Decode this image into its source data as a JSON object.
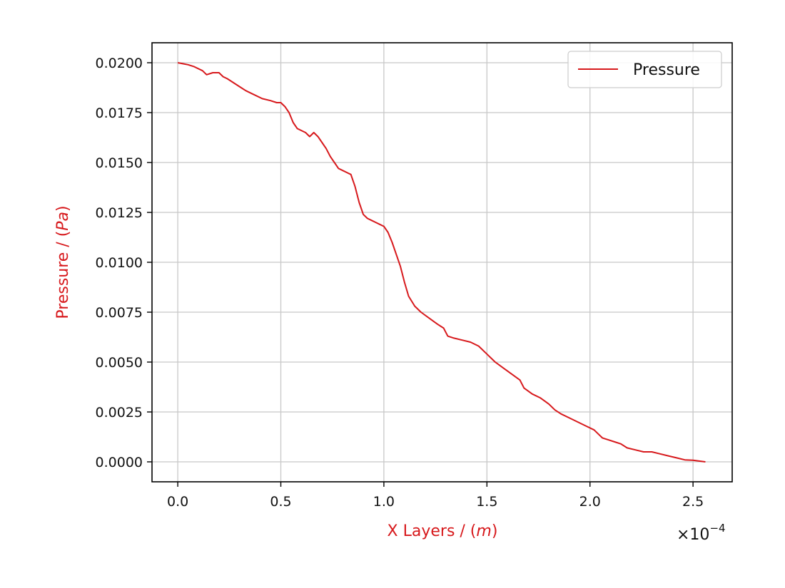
{
  "chart_data": {
    "type": "line",
    "xlabel": {
      "prefix": "X Layers / (",
      "unit": "m",
      "suffix": ")"
    },
    "ylabel": {
      "prefix": "Pressure / (",
      "unit": "Pa",
      "suffix": ")"
    },
    "x_offset_label": {
      "base": "×10",
      "exponent": "−4"
    },
    "x_scale": 0.0001,
    "xlim": [
      -0.125,
      2.69
    ],
    "ylim": [
      -0.001,
      0.021
    ],
    "xticks": [
      0.0,
      0.5,
      1.0,
      1.5,
      2.0,
      2.5
    ],
    "xtick_labels": [
      "0.0",
      "0.5",
      "1.0",
      "1.5",
      "2.0",
      "2.5"
    ],
    "yticks": [
      0.0,
      0.0025,
      0.005,
      0.0075,
      0.01,
      0.0125,
      0.015,
      0.0175,
      0.02
    ],
    "ytick_labels": [
      "0.0000",
      "0.0025",
      "0.0050",
      "0.0075",
      "0.0100",
      "0.0125",
      "0.0150",
      "0.0175",
      "0.0200"
    ],
    "grid": true,
    "legend_position": "top-right",
    "label_color": "#d7191c",
    "series": [
      {
        "name": "Pressure",
        "color": "#d7191c",
        "x": [
          0.0,
          0.05,
          0.08,
          0.12,
          0.14,
          0.17,
          0.2,
          0.22,
          0.24,
          0.27,
          0.3,
          0.33,
          0.37,
          0.41,
          0.45,
          0.48,
          0.5,
          0.52,
          0.54,
          0.56,
          0.58,
          0.62,
          0.64,
          0.66,
          0.68,
          0.7,
          0.72,
          0.74,
          0.76,
          0.78,
          0.8,
          0.82,
          0.84,
          0.86,
          0.88,
          0.9,
          0.92,
          0.94,
          0.96,
          0.98,
          1.0,
          1.02,
          1.04,
          1.06,
          1.08,
          1.1,
          1.12,
          1.15,
          1.18,
          1.22,
          1.26,
          1.29,
          1.31,
          1.34,
          1.38,
          1.42,
          1.46,
          1.5,
          1.54,
          1.58,
          1.62,
          1.66,
          1.68,
          1.72,
          1.76,
          1.8,
          1.83,
          1.86,
          1.9,
          1.94,
          1.98,
          2.02,
          2.04,
          2.06,
          2.09,
          2.12,
          2.15,
          2.18,
          2.22,
          2.26,
          2.3,
          2.34,
          2.38,
          2.42,
          2.46,
          2.5,
          2.53,
          2.56
        ],
        "y": [
          0.02,
          0.0199,
          0.0198,
          0.0196,
          0.0194,
          0.0195,
          0.0195,
          0.0193,
          0.0192,
          0.019,
          0.0188,
          0.0186,
          0.0184,
          0.0182,
          0.0181,
          0.018,
          0.018,
          0.0178,
          0.0175,
          0.017,
          0.0167,
          0.0165,
          0.0163,
          0.0165,
          0.0163,
          0.016,
          0.0157,
          0.0153,
          0.015,
          0.0147,
          0.0146,
          0.0145,
          0.0144,
          0.0138,
          0.013,
          0.0124,
          0.0122,
          0.0121,
          0.012,
          0.0119,
          0.0118,
          0.0115,
          0.011,
          0.0104,
          0.0098,
          0.009,
          0.0083,
          0.0078,
          0.0075,
          0.0072,
          0.0069,
          0.0067,
          0.0063,
          0.0062,
          0.0061,
          0.006,
          0.0058,
          0.0054,
          0.005,
          0.0047,
          0.0044,
          0.0041,
          0.0037,
          0.0034,
          0.0032,
          0.0029,
          0.0026,
          0.0024,
          0.0022,
          0.002,
          0.0018,
          0.0016,
          0.0014,
          0.0012,
          0.0011,
          0.001,
          0.0009,
          0.0007,
          0.0006,
          0.0005,
          0.0005,
          0.0004,
          0.0003,
          0.0002,
          0.0001,
          8e-05,
          4e-05,
          0.0
        ]
      }
    ]
  }
}
